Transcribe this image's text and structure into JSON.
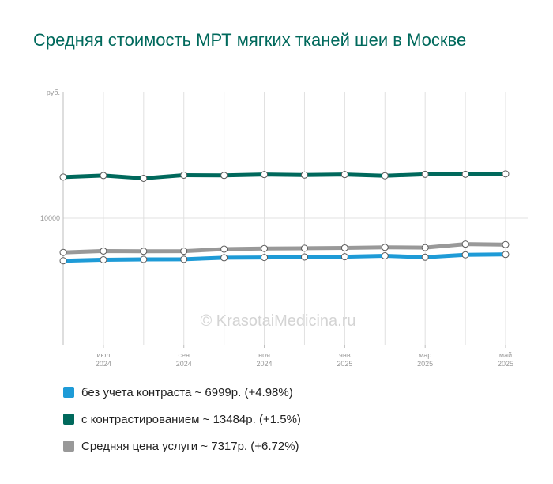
{
  "colors": {
    "title": "#00695c",
    "grid": "#e0e0e0",
    "axis_text": "#999999",
    "watermark": "#d4d4d4"
  },
  "chart_data": {
    "type": "line",
    "title": "Средняя стоимость МРТ мягких тканей шеи в Москве",
    "y_unit": "руб.",
    "yticks": [
      10000
    ],
    "ylim": [
      0,
      20000
    ],
    "x_dates": [
      "2024-06",
      "2024-07",
      "2024-08",
      "2024-09",
      "2024-10",
      "2024-11",
      "2024-12",
      "2025-01",
      "2025-02",
      "2025-03",
      "2025-04",
      "2025-05"
    ],
    "x_ticks": [
      {
        "date": "2024-07",
        "month": "июл",
        "year": "2024"
      },
      {
        "date": "2024-09",
        "month": "сен",
        "year": "2024"
      },
      {
        "date": "2024-11",
        "month": "ноя",
        "year": "2024"
      },
      {
        "date": "2025-01",
        "month": "янв",
        "year": "2025"
      },
      {
        "date": "2025-03",
        "month": "мар",
        "year": "2025"
      },
      {
        "date": "2025-05",
        "month": "май",
        "year": "2025"
      }
    ],
    "grid": true,
    "watermark": "© KrasotaiMedicina.ru",
    "series": [
      {
        "name": "без учета контраста",
        "color": "#1e9bd7",
        "values": [
          6640,
          6720,
          6750,
          6760,
          6880,
          6900,
          6940,
          6960,
          7030,
          6920,
          7110,
          7140
        ],
        "legend": "без учета контраста ~ 6999р. (+4.98%)"
      },
      {
        "name": "с контрастированием",
        "color": "#00695c",
        "values": [
          13260,
          13380,
          13160,
          13410,
          13390,
          13460,
          13420,
          13460,
          13360,
          13480,
          13480,
          13510
        ],
        "legend": "с контрастированием ~ 13484р. (+1.5%)"
      },
      {
        "name": "Средняя цена услуги",
        "color": "#999999",
        "values": [
          7300,
          7410,
          7390,
          7400,
          7560,
          7610,
          7630,
          7660,
          7700,
          7680,
          7960,
          7920
        ],
        "legend": "Средняя цена услуги ~ 7317р. (+6.72%)"
      }
    ]
  }
}
